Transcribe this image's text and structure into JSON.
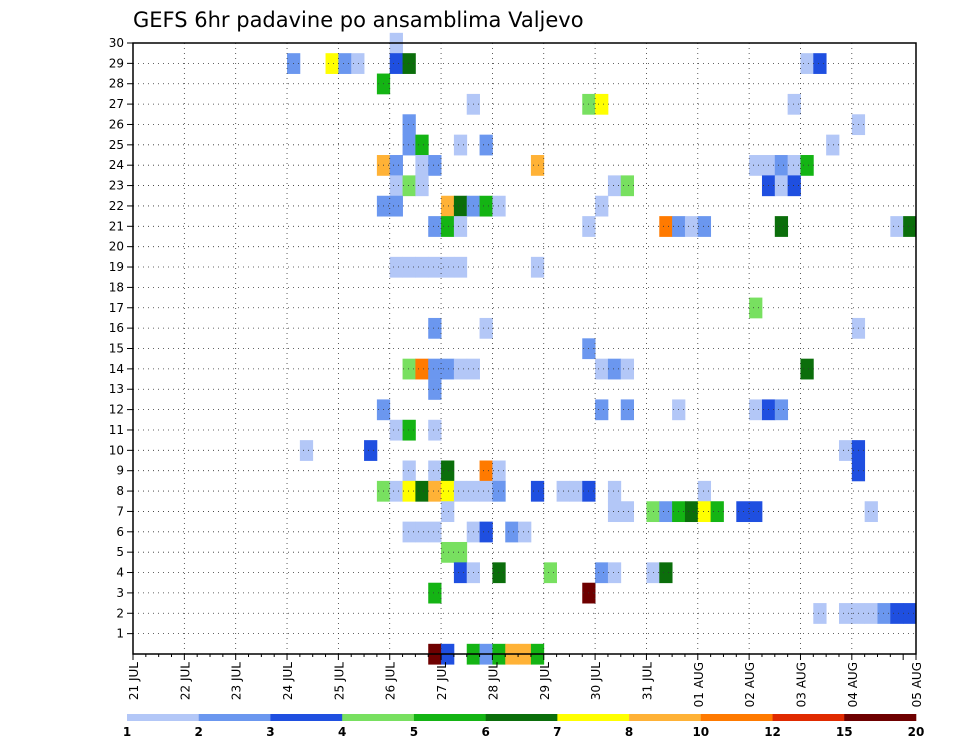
{
  "chart_data": {
    "type": "heatmap",
    "title": "GEFS 6hr padavine po ansamblima Valjevo",
    "xlabel": "",
    "ylabel": "",
    "x_tick_labels": [
      "21 JUL",
      "22 JUL",
      "23 JUL",
      "24 JUL",
      "25 JUL",
      "26 JUL",
      "27 JUL",
      "28 JUL",
      "29 JUL",
      "30 JUL",
      "31 JUL",
      "01 AUG",
      "02 AUG",
      "03 AUG",
      "04 AUG",
      "05 AUG"
    ],
    "x_unit": "6-hour step (4 steps per day)",
    "y_tick_labels": [
      "1",
      "2",
      "3",
      "4",
      "5",
      "6",
      "7",
      "8",
      "9",
      "10",
      "11",
      "12",
      "13",
      "14",
      "15",
      "16",
      "17",
      "18",
      "19",
      "20",
      "21",
      "22",
      "23",
      "24",
      "25",
      "26",
      "27",
      "28",
      "29",
      "30"
    ],
    "ylim": [
      0,
      30
    ],
    "grid": true,
    "colorbar": {
      "placement": "bottom",
      "labels": [
        "1",
        "2",
        "3",
        "4",
        "5",
        "6",
        "7",
        "8",
        "10",
        "12",
        "15",
        "20"
      ],
      "colors": [
        "#b3c7f7",
        "#6b97ef",
        "#1f4fe0",
        "#78e060",
        "#14b414",
        "#0b6e0b",
        "#ffff00",
        "#ffb236",
        "#ff7a00",
        "#e02a00",
        "#6e0000"
      ]
    },
    "cells": [
      [
        20,
        30,
        1
      ],
      [
        12,
        29,
        2
      ],
      [
        15,
        29,
        7
      ],
      [
        16,
        29,
        2
      ],
      [
        17,
        29,
        1
      ],
      [
        20,
        29,
        3
      ],
      [
        21,
        29,
        6
      ],
      [
        52,
        29,
        1
      ],
      [
        53,
        29,
        3
      ],
      [
        19,
        28,
        5
      ],
      [
        26,
        27,
        1
      ],
      [
        35,
        27,
        4
      ],
      [
        36,
        27,
        7
      ],
      [
        51,
        27,
        1
      ],
      [
        21,
        26,
        2
      ],
      [
        56,
        26,
        1
      ],
      [
        21,
        25,
        2
      ],
      [
        22,
        25,
        5
      ],
      [
        25,
        25,
        1
      ],
      [
        27,
        25,
        2
      ],
      [
        54,
        25,
        1
      ],
      [
        19,
        24,
        8
      ],
      [
        20,
        24,
        2
      ],
      [
        22,
        24,
        1
      ],
      [
        23,
        24,
        2
      ],
      [
        31,
        24,
        8
      ],
      [
        48,
        24,
        1
      ],
      [
        49,
        24,
        1
      ],
      [
        50,
        24,
        2
      ],
      [
        51,
        24,
        1
      ],
      [
        52,
        24,
        5
      ],
      [
        20,
        23,
        1
      ],
      [
        21,
        23,
        4
      ],
      [
        22,
        23,
        1
      ],
      [
        37,
        23,
        1
      ],
      [
        38,
        23,
        4
      ],
      [
        49,
        23,
        3
      ],
      [
        50,
        23,
        1
      ],
      [
        51,
        23,
        3
      ],
      [
        19,
        22,
        2
      ],
      [
        20,
        22,
        2
      ],
      [
        24,
        22,
        8
      ],
      [
        25,
        22,
        6
      ],
      [
        26,
        22,
        2
      ],
      [
        27,
        22,
        5
      ],
      [
        28,
        22,
        1
      ],
      [
        36,
        22,
        1
      ],
      [
        23,
        21,
        2
      ],
      [
        24,
        21,
        5
      ],
      [
        25,
        21,
        1
      ],
      [
        35,
        21,
        1
      ],
      [
        41,
        21,
        9
      ],
      [
        42,
        21,
        2
      ],
      [
        43,
        21,
        1
      ],
      [
        44,
        21,
        2
      ],
      [
        50,
        21,
        6
      ],
      [
        59,
        21,
        1
      ],
      [
        60,
        21,
        6
      ],
      [
        20,
        19,
        1
      ],
      [
        21,
        19,
        1
      ],
      [
        22,
        19,
        1
      ],
      [
        23,
        19,
        1
      ],
      [
        24,
        19,
        1
      ],
      [
        25,
        19,
        1
      ],
      [
        31,
        19,
        1
      ],
      [
        48,
        17,
        4
      ],
      [
        23,
        16,
        2
      ],
      [
        27,
        16,
        1
      ],
      [
        56,
        16,
        1
      ],
      [
        35,
        15,
        2
      ],
      [
        21,
        14,
        4
      ],
      [
        22,
        14,
        9
      ],
      [
        23,
        14,
        2
      ],
      [
        24,
        14,
        2
      ],
      [
        25,
        14,
        1
      ],
      [
        26,
        14,
        1
      ],
      [
        36,
        14,
        1
      ],
      [
        37,
        14,
        2
      ],
      [
        38,
        14,
        1
      ],
      [
        52,
        14,
        6
      ],
      [
        23,
        13,
        2
      ],
      [
        19,
        12,
        2
      ],
      [
        36,
        12,
        2
      ],
      [
        38,
        12,
        2
      ],
      [
        42,
        12,
        1
      ],
      [
        48,
        12,
        1
      ],
      [
        49,
        12,
        3
      ],
      [
        50,
        12,
        2
      ],
      [
        20,
        11,
        1
      ],
      [
        21,
        11,
        5
      ],
      [
        23,
        11,
        1
      ],
      [
        13,
        10,
        1
      ],
      [
        18,
        10,
        3
      ],
      [
        55,
        10,
        1
      ],
      [
        56,
        10,
        3
      ],
      [
        21,
        9,
        1
      ],
      [
        23,
        9,
        1
      ],
      [
        24,
        9,
        6
      ],
      [
        27,
        9,
        9
      ],
      [
        28,
        9,
        1
      ],
      [
        56,
        9,
        3
      ],
      [
        19,
        8,
        4
      ],
      [
        20,
        8,
        1
      ],
      [
        21,
        8,
        7
      ],
      [
        22,
        8,
        6
      ],
      [
        23,
        8,
        8
      ],
      [
        24,
        8,
        7
      ],
      [
        25,
        8,
        1
      ],
      [
        26,
        8,
        1
      ],
      [
        27,
        8,
        1
      ],
      [
        28,
        8,
        2
      ],
      [
        31,
        8,
        3
      ],
      [
        33,
        8,
        1
      ],
      [
        34,
        8,
        1
      ],
      [
        35,
        8,
        3
      ],
      [
        37,
        8,
        1
      ],
      [
        44,
        8,
        1
      ],
      [
        24,
        7,
        1
      ],
      [
        37,
        7,
        1
      ],
      [
        38,
        7,
        1
      ],
      [
        40,
        7,
        4
      ],
      [
        41,
        7,
        2
      ],
      [
        42,
        7,
        5
      ],
      [
        43,
        7,
        6
      ],
      [
        44,
        7,
        7
      ],
      [
        45,
        7,
        5
      ],
      [
        47,
        7,
        3
      ],
      [
        48,
        7,
        3
      ],
      [
        57,
        7,
        1
      ],
      [
        21,
        6,
        1
      ],
      [
        22,
        6,
        1
      ],
      [
        23,
        6,
        1
      ],
      [
        26,
        6,
        1
      ],
      [
        27,
        6,
        3
      ],
      [
        29,
        6,
        2
      ],
      [
        30,
        6,
        1
      ],
      [
        24,
        5,
        4
      ],
      [
        25,
        5,
        4
      ],
      [
        25,
        4,
        3
      ],
      [
        26,
        4,
        1
      ],
      [
        28,
        4,
        6
      ],
      [
        32,
        4,
        4
      ],
      [
        36,
        4,
        2
      ],
      [
        37,
        4,
        1
      ],
      [
        40,
        4,
        1
      ],
      [
        41,
        4,
        6
      ],
      [
        23,
        3,
        5
      ],
      [
        35,
        3,
        11
      ],
      [
        53,
        2,
        1
      ],
      [
        55,
        2,
        1
      ],
      [
        56,
        2,
        1
      ],
      [
        57,
        2,
        1
      ],
      [
        58,
        2,
        2
      ],
      [
        59,
        2,
        3
      ],
      [
        60,
        2,
        3
      ],
      [
        23,
        0,
        11
      ],
      [
        24,
        0,
        3
      ],
      [
        26,
        0,
        5
      ],
      [
        27,
        0,
        2
      ],
      [
        28,
        0,
        5
      ],
      [
        29,
        0,
        8
      ],
      [
        30,
        0,
        8
      ],
      [
        31,
        0,
        5
      ]
    ]
  }
}
